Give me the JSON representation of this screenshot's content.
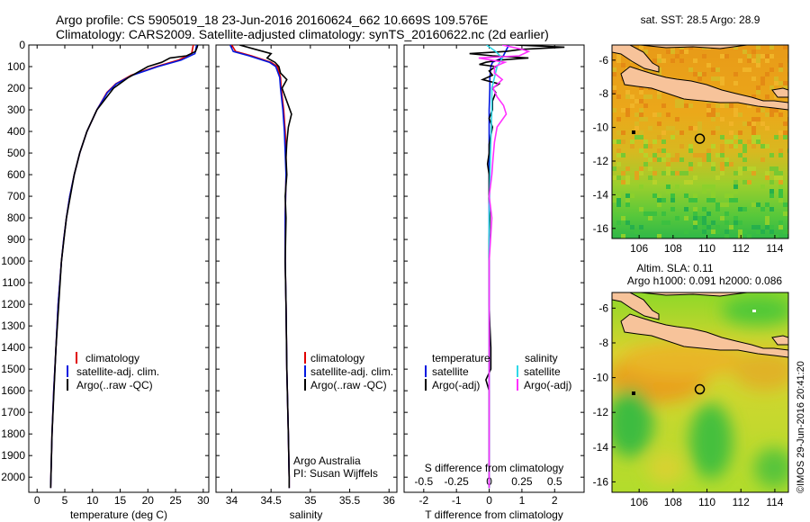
{
  "header": {
    "line1": "Argo profile: CS 5905019_18 23-Jun-2016 20160624_662 10.669S 109.576E",
    "line2": "Climatology: CARS2009. Satellite-adjusted climatology: synTS_20160622.nc (2d earlier)"
  },
  "colors": {
    "climatology": "#e00000",
    "satellite": "#0018e0",
    "argo": "#000000",
    "sat_salinity": "#30d8e8",
    "argo_salinity": "#ff30ff",
    "land": "#f7c39a"
  },
  "chart_data": [
    {
      "type": "line",
      "name": "temperature-profile",
      "xlabel": "temperature (deg C)",
      "xlim": [
        -1.5,
        31
      ],
      "xticks": [
        0,
        5,
        10,
        15,
        20,
        25,
        30
      ],
      "ylim": [
        0,
        2070
      ],
      "yticks": [
        0,
        100,
        200,
        300,
        400,
        500,
        600,
        700,
        800,
        900,
        1000,
        1100,
        1200,
        1300,
        1400,
        1500,
        1600,
        1700,
        1800,
        1900,
        2000
      ],
      "legend": [
        "climatology",
        "satellite-adj. clim.",
        "Argo(..raw -QC)"
      ],
      "series": [
        {
          "name": "climatology",
          "color": "#e00000",
          "depth": [
            0,
            40,
            70,
            100,
            140,
            180,
            220,
            300,
            400,
            500,
            600,
            700,
            800,
            900,
            1000,
            1200,
            1400,
            1600,
            1800,
            2000,
            2050
          ],
          "values": [
            28.2,
            27.9,
            25.5,
            21.5,
            17.0,
            14.2,
            12.6,
            10.8,
            9.0,
            7.7,
            6.7,
            5.9,
            5.3,
            4.8,
            4.4,
            3.8,
            3.4,
            3.0,
            2.7,
            2.5,
            2.45
          ]
        },
        {
          "name": "satellite-adj. clim.",
          "color": "#0018e0",
          "depth": [
            0,
            40,
            70,
            100,
            140,
            180,
            220,
            300,
            400,
            500,
            600,
            700,
            800,
            900,
            1000,
            1200,
            1400,
            1600,
            1800,
            2000,
            2050
          ],
          "values": [
            28.8,
            28.5,
            26.0,
            21.8,
            17.2,
            14.3,
            12.7,
            10.8,
            9.0,
            7.7,
            6.7,
            5.9,
            5.3,
            4.8,
            4.4,
            3.8,
            3.4,
            3.0,
            2.7,
            2.5,
            2.45
          ]
        },
        {
          "name": "Argo(..raw -QC)",
          "color": "#000000",
          "depth": [
            0,
            10,
            30,
            50,
            60,
            80,
            100,
            150,
            200,
            300,
            400,
            500,
            600,
            800,
            1000,
            1400,
            1800,
            2000,
            2050
          ],
          "values": [
            29.0,
            28.9,
            28.6,
            27.0,
            24.0,
            22.5,
            20.0,
            16.5,
            13.8,
            10.8,
            9.0,
            7.7,
            6.7,
            5.3,
            4.4,
            3.4,
            2.7,
            2.5,
            2.45
          ]
        }
      ]
    },
    {
      "type": "line",
      "name": "salinity-profile",
      "xlabel": "salinity",
      "xlim": [
        33.8,
        36.1
      ],
      "xticks": [
        34,
        34.5,
        35,
        35.5,
        36
      ],
      "ylim": [
        0,
        2070
      ],
      "legend": [
        "climatology",
        "satellite-adj. clim.",
        "Argo(..raw -QC)"
      ],
      "annotation": [
        "Argo Australia",
        "PI: Susan Wijffels"
      ],
      "series": [
        {
          "name": "climatology",
          "color": "#e00000",
          "depth": [
            0,
            30,
            50,
            80,
            100,
            150,
            200,
            300,
            400,
            500,
            600,
            800,
            1000,
            1200,
            1500,
            1800,
            2000,
            2050
          ],
          "values": [
            34.0,
            34.05,
            34.25,
            34.5,
            34.58,
            34.62,
            34.63,
            34.66,
            34.68,
            34.69,
            34.69,
            34.68,
            34.68,
            34.69,
            34.7,
            34.72,
            34.73,
            34.73
          ]
        },
        {
          "name": "satellite-adj. clim.",
          "color": "#0018e0",
          "depth": [
            0,
            30,
            50,
            80,
            100,
            150,
            200,
            300,
            400,
            500,
            600,
            800,
            1000,
            1200,
            1500,
            1800,
            2000,
            2050
          ],
          "values": [
            33.98,
            34.02,
            34.22,
            34.48,
            34.56,
            34.61,
            34.62,
            34.65,
            34.67,
            34.68,
            34.69,
            34.68,
            34.68,
            34.69,
            34.7,
            34.72,
            34.73,
            34.73
          ]
        },
        {
          "name": "Argo(..raw -QC)",
          "color": "#000000",
          "depth": [
            0,
            20,
            40,
            60,
            80,
            100,
            130,
            160,
            200,
            240,
            280,
            320,
            380,
            450,
            520,
            600,
            700,
            800,
            1000,
            1200,
            1500,
            1800,
            2000,
            2050
          ],
          "values": [
            34.1,
            34.3,
            34.5,
            34.45,
            34.55,
            34.6,
            34.62,
            34.7,
            34.64,
            34.68,
            34.72,
            34.76,
            34.72,
            34.7,
            34.69,
            34.7,
            34.68,
            34.69,
            34.68,
            34.69,
            34.7,
            34.72,
            34.73,
            34.73
          ]
        }
      ]
    },
    {
      "type": "line",
      "name": "difference-profile",
      "xlabel": "T difference from climatology",
      "xlabel2": "S difference from climatology",
      "xlim": [
        -2.6,
        2.9
      ],
      "xticks": [
        -2,
        -1,
        0,
        1,
        2
      ],
      "xticks2_values": [
        -0.5,
        -0.25,
        0,
        0.25,
        0.5
      ],
      "xticks2_labels": [
        "-0.5",
        "-0.25",
        "0",
        "0.25",
        "0.5"
      ],
      "ylim": [
        0,
        2070
      ],
      "legend": {
        "temperature_title": "temperature",
        "salinity_title": "salinity",
        "items": [
          "satellite",
          "Argo(-adj)",
          "satellite",
          "Argo(-adj)"
        ]
      },
      "series": [
        {
          "name": "T satellite",
          "color": "#0018e0",
          "depth": [
            0,
            30,
            60,
            80,
            100,
            150,
            200,
            300,
            500,
            800,
            1200,
            1600,
            2000,
            2050
          ],
          "values": [
            0.6,
            0.5,
            0.4,
            0.1,
            0.05,
            0.02,
            0.02,
            0,
            0,
            0,
            0,
            0,
            0,
            0
          ]
        },
        {
          "name": "T Argo(-adj)",
          "color": "#000000",
          "depth": [
            0,
            10,
            20,
            30,
            40,
            50,
            60,
            70,
            80,
            90,
            100,
            120,
            140,
            160,
            180,
            200,
            220,
            260,
            300,
            340,
            380,
            420,
            460,
            500,
            550,
            600,
            700,
            800,
            900,
            1000,
            1100,
            1200,
            1300,
            1400,
            1500,
            1550,
            1600,
            1700,
            1800,
            1900,
            2000,
            2050
          ],
          "values": [
            0.8,
            2.3,
            1.0,
            0.5,
            -0.6,
            0.1,
            1.2,
            0.3,
            -0.1,
            -0.3,
            0.2,
            0.0,
            0.1,
            -0.2,
            0.3,
            0.1,
            0.2,
            0.1,
            0.1,
            0.0,
            0.1,
            0.05,
            0.0,
            0.0,
            -0.05,
            0.0,
            0.0,
            0.02,
            0.0,
            0.0,
            0.0,
            0.0,
            0.02,
            0.05,
            0.05,
            -0.1,
            0.0,
            0.0,
            0.0,
            0.0,
            0.0,
            0.0
          ]
        },
        {
          "name": "S satellite",
          "color": "#30d8e8",
          "depth": [
            0,
            30,
            60,
            100,
            150,
            200,
            300,
            500,
            800,
            1200,
            1600,
            2000,
            2050
          ],
          "values": [
            -0.02,
            0.05,
            0.1,
            0.06,
            0.04,
            0.02,
            0.02,
            0.01,
            0,
            0,
            0,
            0,
            0
          ]
        },
        {
          "name": "S Argo(-adj)",
          "color": "#ff30ff",
          "depth": [
            0,
            20,
            30,
            50,
            60,
            80,
            100,
            130,
            160,
            200,
            240,
            280,
            320,
            380,
            450,
            520,
            600,
            700,
            800,
            1000,
            1200,
            1500,
            1800,
            2000,
            2050
          ],
          "values": [
            0.1,
            0.25,
            0.3,
            0.23,
            -0.08,
            0.12,
            0.04,
            0.04,
            0.1,
            0.03,
            0.06,
            0.11,
            0.13,
            0.06,
            0.04,
            0.03,
            0.02,
            0.0,
            0.02,
            0.0,
            0.0,
            0.0,
            0.0,
            0.0,
            0.0
          ]
        }
      ]
    }
  ],
  "maps": {
    "sst_title": "sat. SST: 28.5 Argo: 28.9",
    "sla_title1": "Altim. SLA: 0.11",
    "sla_title2": "Argo h1000: 0.091 h2000: 0.086",
    "xticks": [
      106,
      108,
      110,
      112,
      114
    ],
    "yticks": [
      -6,
      -8,
      -10,
      -12,
      -14,
      -16
    ],
    "xlim": [
      104.4,
      114.8
    ],
    "ylim": [
      -16.6,
      -5.1
    ],
    "float_lon": 109.576,
    "float_lat": -10.669
  },
  "credit": "©IMOS 29-Jun-2016 20:41:20"
}
